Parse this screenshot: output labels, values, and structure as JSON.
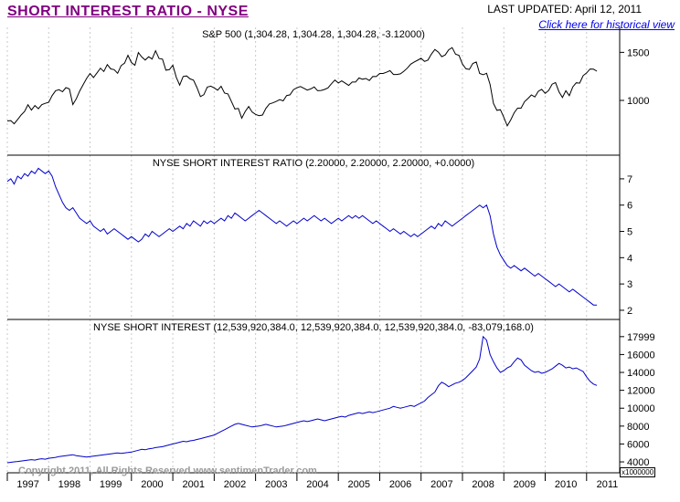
{
  "header": {
    "title": "SHORT INTEREST RATIO - NYSE",
    "last_updated": "LAST UPDATED:  April 12, 2011",
    "link": "Click here for historical view"
  },
  "footer": {
    "copyright": "Copyright 2011, All Rights Reserved  www.sentimenTrader.com",
    "unit_label": "x1000000"
  },
  "x_axis": {
    "labels": [
      "1997",
      "1998",
      "1999",
      "2000",
      "2001",
      "2002",
      "2003",
      "2004",
      "2005",
      "2006",
      "2007",
      "2008",
      "2009",
      "2010",
      "2011"
    ]
  },
  "chart_data": [
    {
      "type": "line",
      "id": "sp500",
      "name": "S&P 500",
      "title": "S&P 500 (1,304.28, 1,304.28, 1,304.28, -3.12000)",
      "color": "#000000",
      "x_start": 1997.0,
      "x_step": 0.0833333,
      "xlim": [
        1997,
        2011.8
      ],
      "ylim": [
        430,
        1760
      ],
      "yticks": [
        1500,
        1000
      ],
      "values": [
        786,
        790,
        757,
        801,
        848,
        885,
        954,
        899,
        947,
        914,
        955,
        970,
        980,
        1049,
        1101,
        1111,
        1090,
        1133,
        1120,
        957,
        1017,
        1098,
        1163,
        1229,
        1279,
        1238,
        1286,
        1335,
        1301,
        1372,
        1328,
        1320,
        1282,
        1362,
        1388,
        1469,
        1394,
        1366,
        1498,
        1452,
        1420,
        1454,
        1430,
        1517,
        1436,
        1429,
        1314,
        1320,
        1366,
        1239,
        1160,
        1249,
        1255,
        1224,
        1211,
        1133,
        1040,
        1059,
        1139,
        1148,
        1130,
        1106,
        1147,
        1076,
        1067,
        989,
        911,
        916,
        815,
        885,
        936,
        879,
        855,
        841,
        848,
        916,
        963,
        974,
        990,
        1008,
        995,
        1050,
        1058,
        1112,
        1131,
        1144,
        1126,
        1107,
        1120,
        1140,
        1101,
        1104,
        1114,
        1130,
        1173,
        1212,
        1181,
        1203,
        1180,
        1156,
        1191,
        1191,
        1234,
        1220,
        1228,
        1207,
        1249,
        1248,
        1280,
        1280,
        1294,
        1310,
        1270,
        1270,
        1276,
        1303,
        1335,
        1377,
        1400,
        1418,
        1438,
        1406,
        1420,
        1482,
        1530,
        1503,
        1455,
        1473,
        1526,
        1549,
        1481,
        1468,
        1378,
        1330,
        1322,
        1385,
        1400,
        1280,
        1267,
        1282,
        1166,
        968,
        896,
        903,
        825,
        735,
        797,
        872,
        919,
        919,
        987,
        1020,
        1057,
        1036,
        1095,
        1115,
        1073,
        1104,
        1169,
        1186,
        1089,
        1030,
        1101,
        1049,
        1141,
        1183,
        1180,
        1257,
        1286,
        1327,
        1325,
        1304
      ]
    },
    {
      "type": "line",
      "id": "nyse-short-interest-ratio",
      "name": "NYSE Short Interest Ratio",
      "title": "NYSE SHORT INTEREST RATIO (2.20000, 2.20000, 2.20000, +0.0000)",
      "color": "#0000cc",
      "x_start": 1997.0,
      "x_step": 0.0833333,
      "xlim": [
        1997,
        2011.8
      ],
      "ylim": [
        1.65,
        7.9
      ],
      "yticks": [
        7,
        6,
        5,
        4,
        3,
        2
      ],
      "values": [
        6.9,
        7.0,
        6.8,
        7.1,
        7.0,
        7.2,
        7.1,
        7.3,
        7.2,
        7.4,
        7.3,
        7.2,
        7.3,
        7.1,
        6.7,
        6.4,
        6.1,
        5.9,
        5.8,
        5.9,
        5.7,
        5.5,
        5.4,
        5.3,
        5.4,
        5.2,
        5.1,
        5.0,
        5.1,
        4.9,
        5.0,
        5.1,
        5.0,
        4.9,
        4.8,
        4.7,
        4.8,
        4.7,
        4.6,
        4.7,
        4.9,
        4.8,
        5.0,
        4.9,
        4.8,
        4.9,
        5.0,
        5.1,
        5.0,
        5.1,
        5.2,
        5.1,
        5.3,
        5.2,
        5.4,
        5.3,
        5.2,
        5.4,
        5.3,
        5.4,
        5.3,
        5.4,
        5.5,
        5.4,
        5.6,
        5.5,
        5.7,
        5.6,
        5.5,
        5.4,
        5.5,
        5.6,
        5.7,
        5.8,
        5.7,
        5.6,
        5.5,
        5.4,
        5.3,
        5.4,
        5.3,
        5.2,
        5.3,
        5.4,
        5.3,
        5.4,
        5.5,
        5.4,
        5.5,
        5.6,
        5.5,
        5.4,
        5.5,
        5.4,
        5.3,
        5.4,
        5.5,
        5.4,
        5.5,
        5.6,
        5.5,
        5.6,
        5.5,
        5.6,
        5.5,
        5.4,
        5.3,
        5.4,
        5.3,
        5.2,
        5.1,
        5.0,
        5.1,
        5.0,
        4.9,
        5.0,
        4.9,
        4.8,
        4.9,
        4.8,
        4.9,
        5.0,
        5.1,
        5.2,
        5.1,
        5.3,
        5.2,
        5.4,
        5.3,
        5.2,
        5.3,
        5.4,
        5.5,
        5.6,
        5.7,
        5.8,
        5.9,
        6.0,
        5.9,
        6.0,
        5.6,
        4.9,
        4.4,
        4.1,
        3.9,
        3.7,
        3.6,
        3.7,
        3.6,
        3.5,
        3.6,
        3.5,
        3.4,
        3.3,
        3.4,
        3.3,
        3.2,
        3.1,
        3.0,
        2.9,
        3.0,
        2.9,
        2.8,
        2.7,
        2.8,
        2.7,
        2.6,
        2.5,
        2.4,
        2.3,
        2.2,
        2.2
      ]
    },
    {
      "type": "line",
      "id": "nyse-short-interest",
      "name": "NYSE Short Interest (millions of shares)",
      "title": "NYSE SHORT INTEREST (12,539,920,384.0, 12,539,920,384.0, 12,539,920,384.0, -83,079,168.0)",
      "color": "#0000cc",
      "x_start": 1997.0,
      "x_step": 0.0833333,
      "xlim": [
        1997,
        2011.8
      ],
      "ylim": [
        2780,
        19920
      ],
      "yticks": [
        17999,
        16000,
        14000,
        12000,
        10000,
        8000,
        6000,
        4000
      ],
      "unit_note": "x1000000",
      "values": [
        3900,
        3950,
        4000,
        4050,
        4100,
        4150,
        4200,
        4250,
        4200,
        4300,
        4350,
        4300,
        4400,
        4450,
        4500,
        4600,
        4650,
        4700,
        4750,
        4800,
        4700,
        4650,
        4600,
        4550,
        4600,
        4650,
        4700,
        4750,
        4800,
        4850,
        4900,
        4950,
        5000,
        4950,
        5000,
        5050,
        5100,
        5200,
        5300,
        5400,
        5350,
        5450,
        5500,
        5600,
        5650,
        5700,
        5800,
        5900,
        6000,
        6100,
        6200,
        6300,
        6250,
        6350,
        6400,
        6500,
        6600,
        6700,
        6800,
        6900,
        7000,
        7200,
        7400,
        7600,
        7800,
        8000,
        8200,
        8300,
        8200,
        8100,
        8000,
        7900,
        7950,
        8000,
        8100,
        8200,
        8100,
        8000,
        7900,
        7950,
        8000,
        8100,
        8200,
        8300,
        8400,
        8500,
        8600,
        8500,
        8600,
        8700,
        8800,
        8700,
        8600,
        8700,
        8800,
        8900,
        9000,
        9100,
        9000,
        9200,
        9300,
        9400,
        9500,
        9400,
        9500,
        9600,
        9500,
        9600,
        9700,
        9800,
        9900,
        10000,
        10200,
        10100,
        10000,
        10100,
        10200,
        10300,
        10200,
        10400,
        10600,
        10800,
        11200,
        11500,
        11800,
        12500,
        12900,
        12700,
        12400,
        12600,
        12800,
        12900,
        13100,
        13400,
        13800,
        14200,
        14600,
        15500,
        18000,
        17600,
        16000,
        15200,
        14500,
        14000,
        14200,
        14500,
        14700,
        15200,
        15600,
        15400,
        14800,
        14500,
        14200,
        14000,
        14100,
        13900,
        14000,
        14200,
        14400,
        14700,
        15000,
        14800,
        14500,
        14600,
        14400,
        14500,
        14300,
        14100,
        13500,
        13000,
        12700,
        12540
      ]
    }
  ]
}
